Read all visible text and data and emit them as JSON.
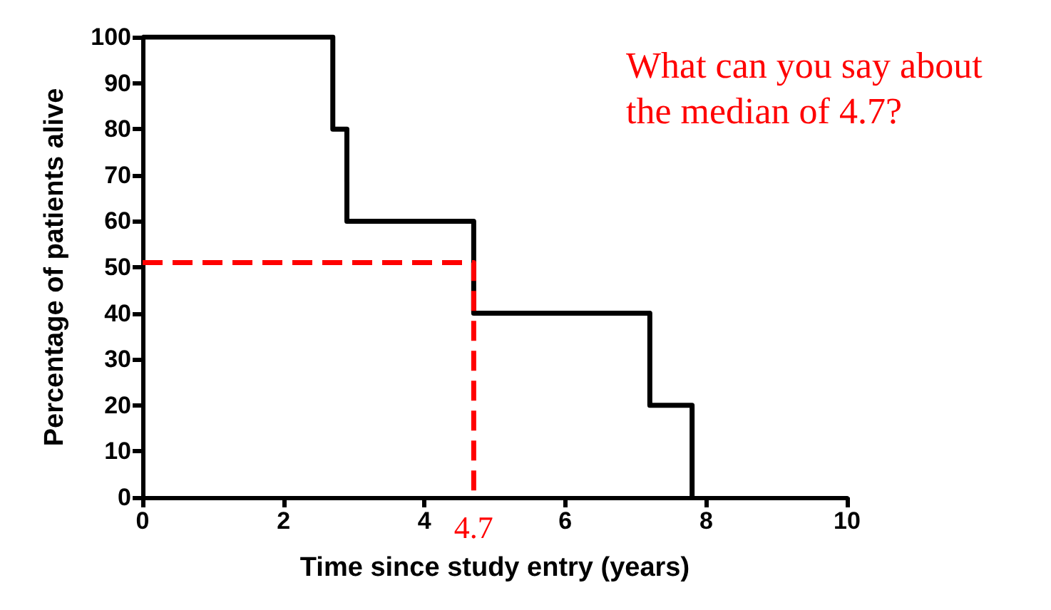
{
  "chart_data": {
    "type": "step",
    "xlabel": "Time since study entry (years)",
    "ylabel": "Percentage of patients alive",
    "series": [
      {
        "color": "#000000",
        "x": [
          0,
          2.7,
          2.9,
          4.7,
          7.2,
          7.8
        ],
        "values": [
          100,
          80,
          60,
          40,
          20,
          0
        ],
        "line_style": "solid"
      },
      {
        "type": "line",
        "color": "#ff0000",
        "x": [
          0,
          4.7,
          4.7
        ],
        "values": [
          51,
          51,
          0
        ],
        "line_style": "dashed"
      }
    ],
    "xlim": [
      0,
      10
    ],
    "xticks": [
      0,
      2,
      4,
      6,
      8,
      10
    ],
    "ylim": [
      0,
      100
    ],
    "yticks": [
      0,
      10,
      20,
      30,
      40,
      50,
      60,
      70,
      80,
      90,
      100
    ],
    "grid": false,
    "marker": "none",
    "annotations": [
      "What can you say about the median of 4.7?",
      {
        "text": "4.7",
        "x": 4.7,
        "y": 0
      }
    ]
  }
}
